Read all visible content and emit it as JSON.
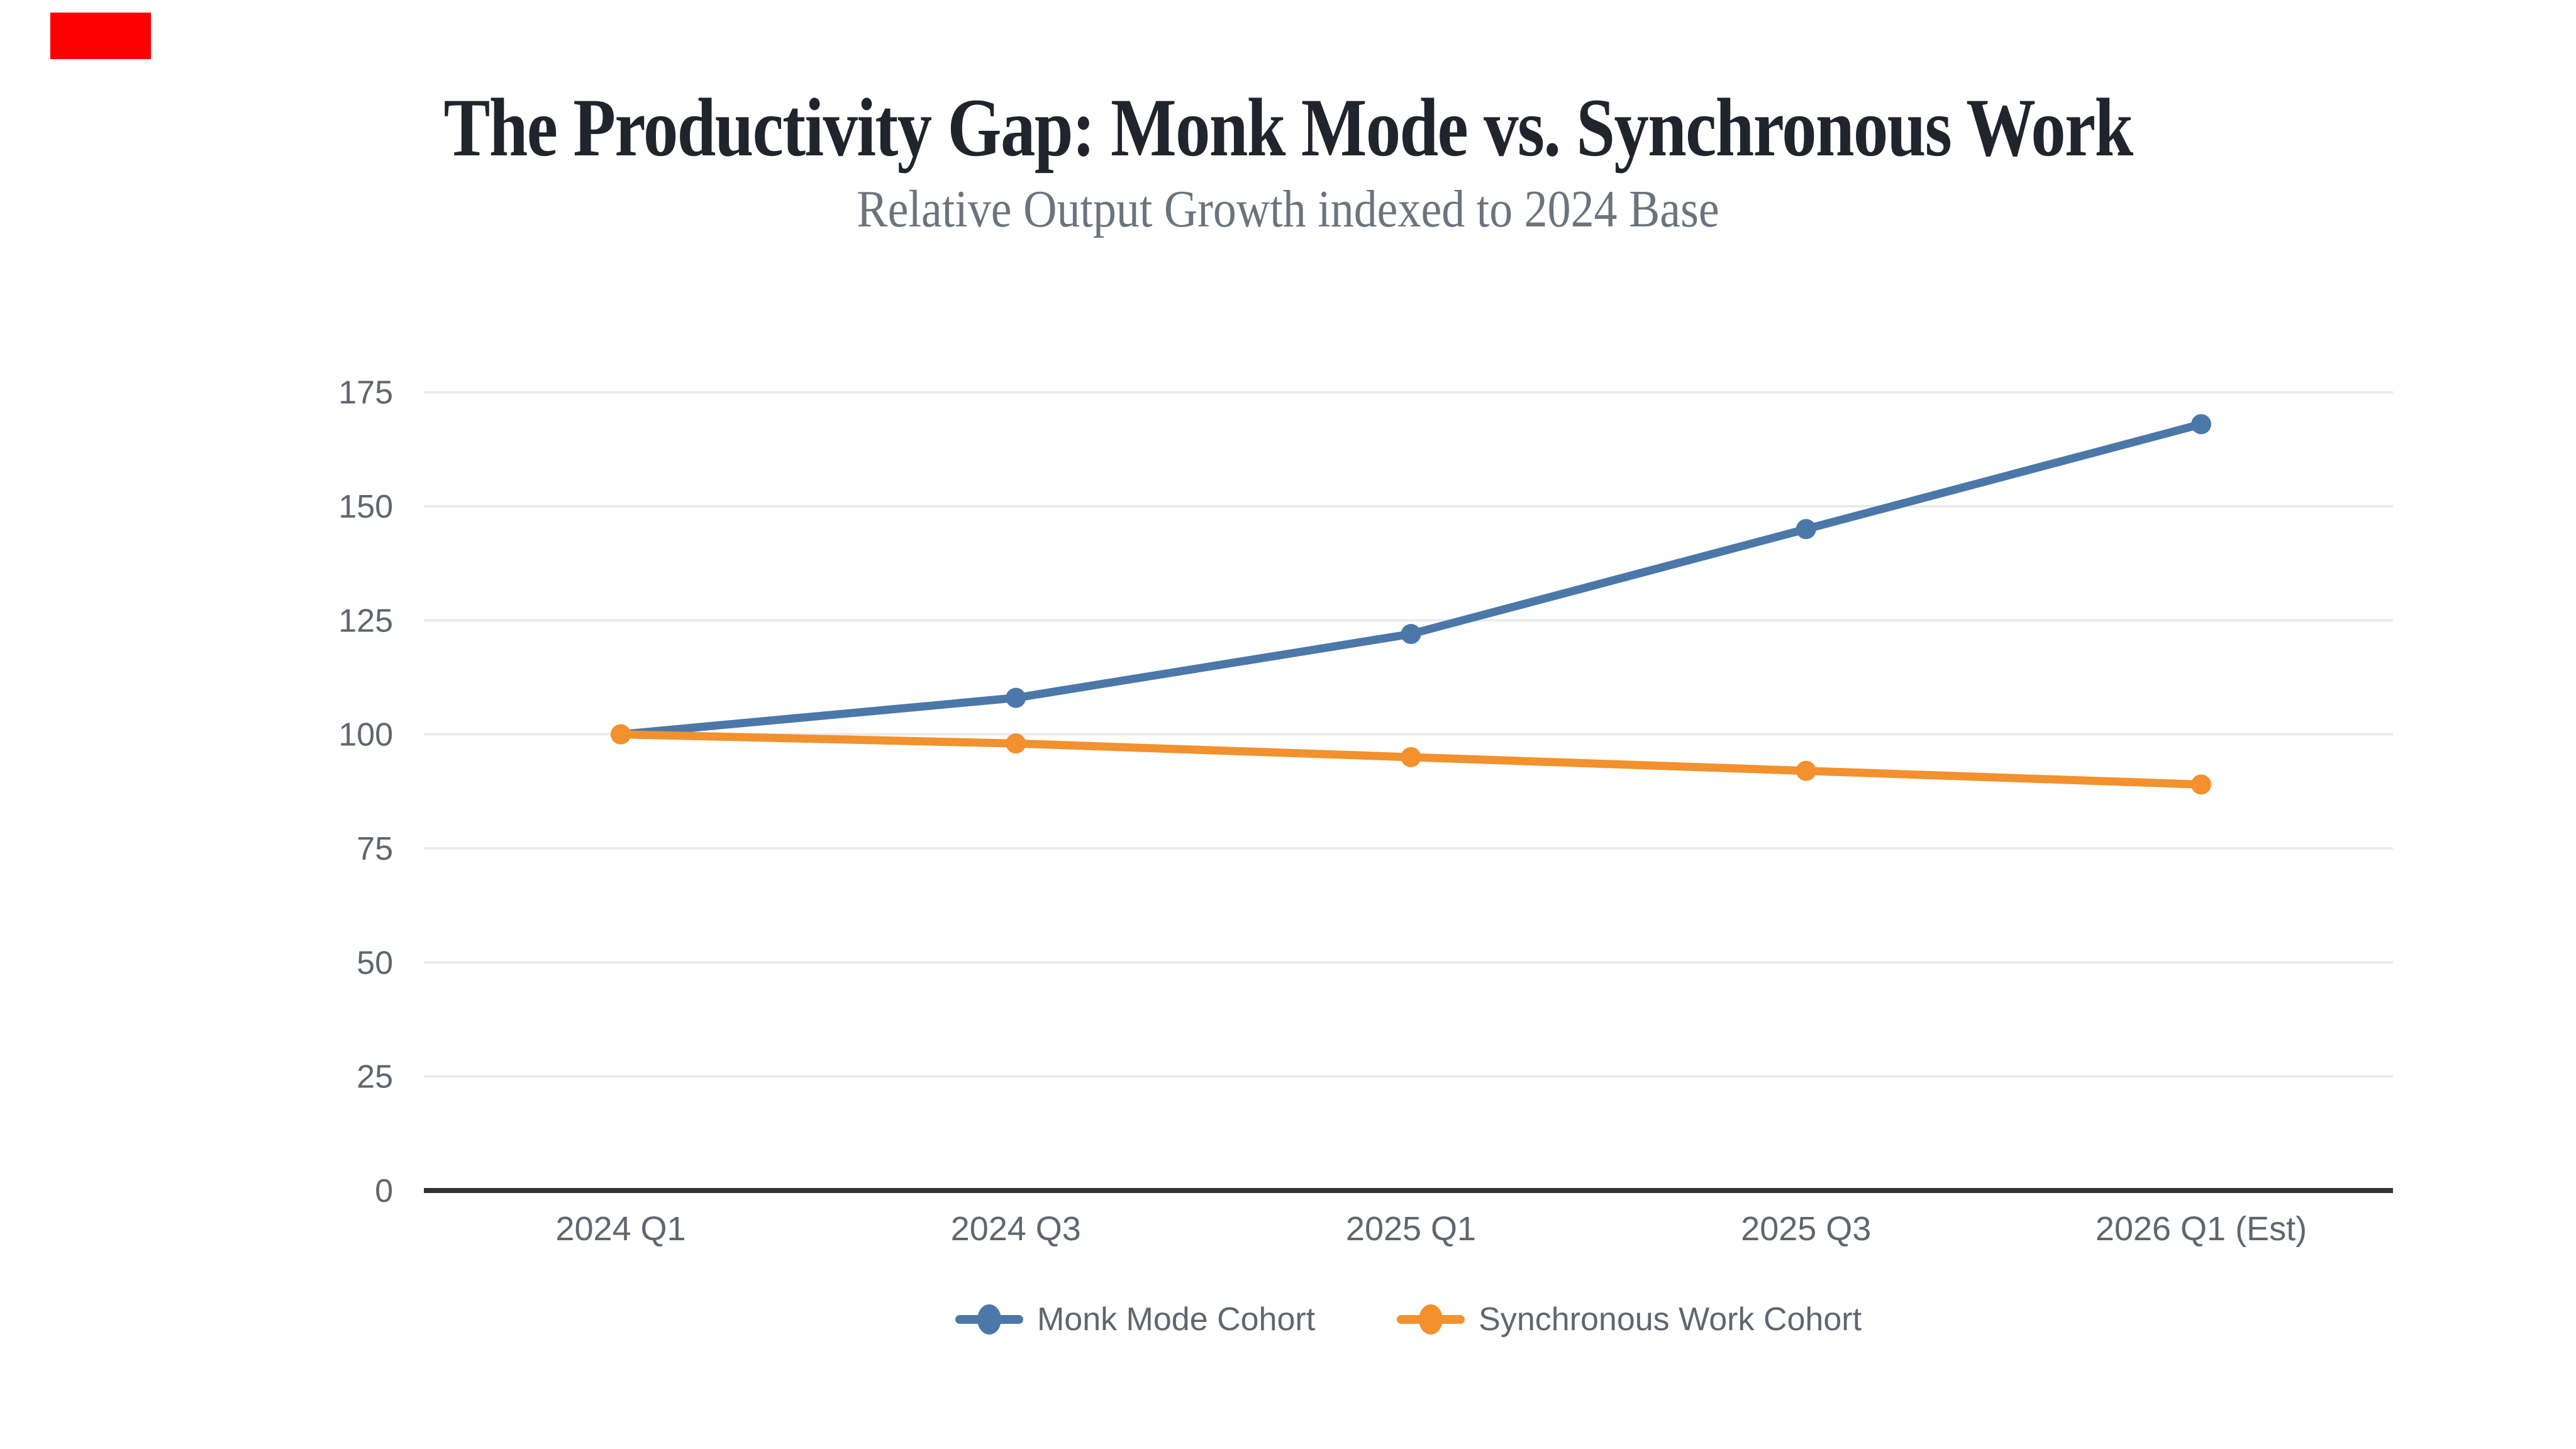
{
  "ui": {
    "recording_indicator": {
      "color": "#ff0000"
    }
  },
  "chart_data": {
    "type": "line",
    "title": "The Productivity Gap: Monk Mode vs. Synchronous Work",
    "subtitle": "Relative Output Growth indexed to 2024 Base",
    "categories": [
      "2024 Q1",
      "2024 Q3",
      "2025 Q1",
      "2025 Q3",
      "2026 Q1 (Est)"
    ],
    "series": [
      {
        "name": "Monk Mode Cohort",
        "color": "#4b78a8",
        "values": [
          100,
          108,
          122,
          145,
          168
        ]
      },
      {
        "name": "Synchronous Work Cohort",
        "color": "#f2912d",
        "values": [
          100,
          98,
          95,
          92,
          89
        ]
      }
    ],
    "xlabel": "",
    "ylabel": "",
    "ylim": [
      0,
      175
    ],
    "yticks": [
      0,
      25,
      50,
      75,
      100,
      125,
      150,
      175
    ],
    "grid": true,
    "legend_position": "bottom",
    "colors": {
      "grid": "#eaeaef",
      "axis": "#2f343a",
      "tick_label": "#60666e",
      "legend_label": "#60666e",
      "title": "#20242c",
      "subtitle": "#6d737d",
      "background": "#ffffff"
    }
  }
}
